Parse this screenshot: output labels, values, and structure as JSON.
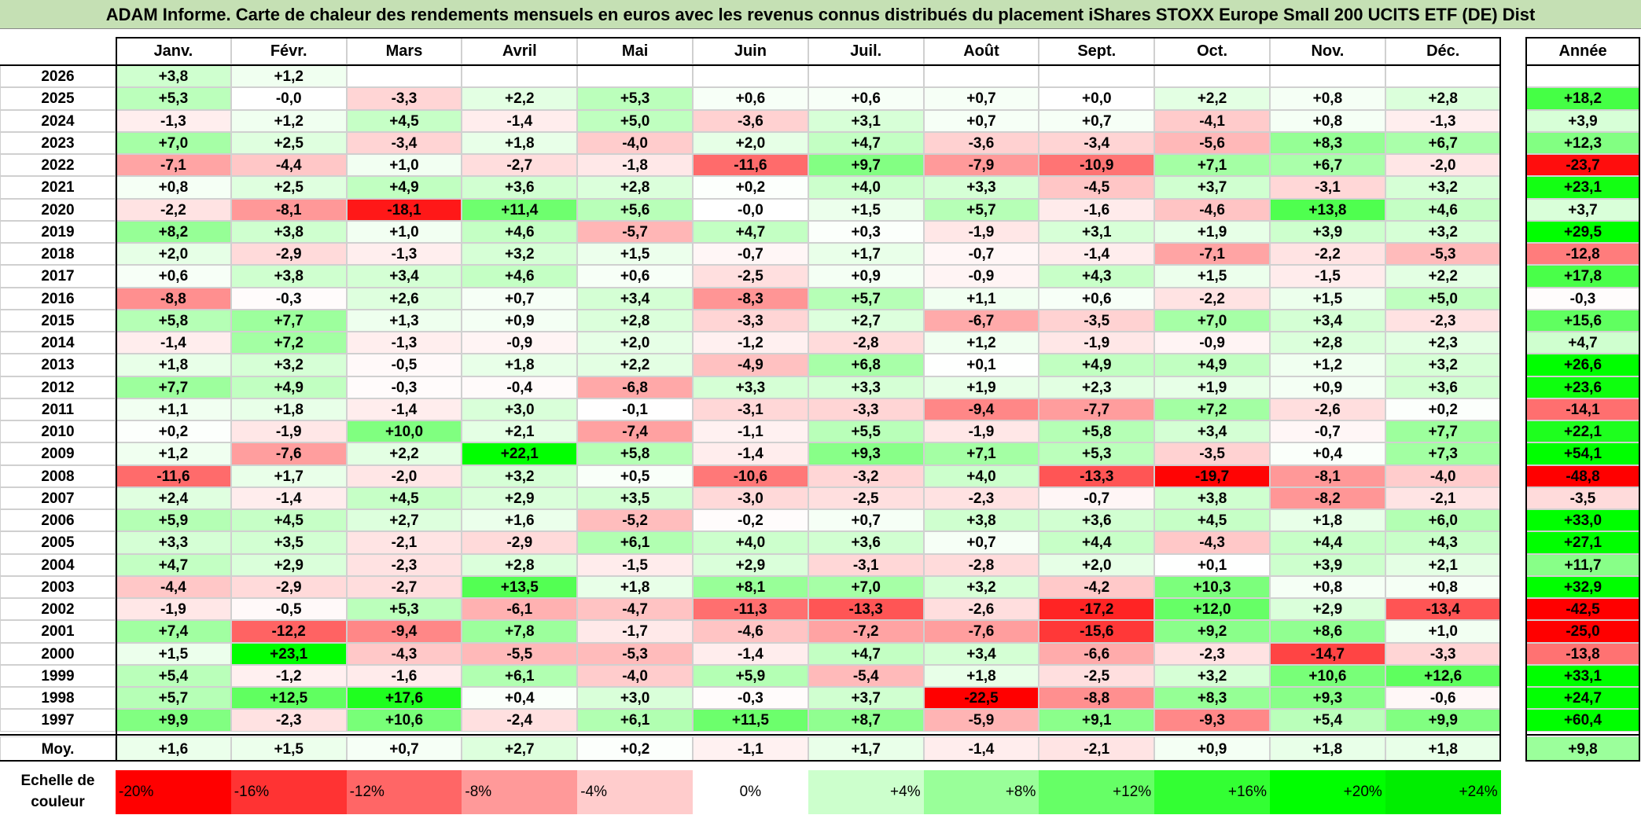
{
  "title": "ADAM Informe. Carte de chaleur des rendements mensuels en euros avec les revenus connus distribués du placement iShares STOXX Europe Small 200 UCITS ETF (DE) Dist",
  "chart_data": {
    "type": "heatmap",
    "title": "ADAM Informe. Carte de chaleur des rendements mensuels en euros avec les revenus connus distribués du placement iShares STOXX Europe Small 200 UCITS ETF (DE) Dist",
    "months": [
      "Janv.",
      "Févr.",
      "Mars",
      "Avril",
      "Mai",
      "Juin",
      "Juil.",
      "Août",
      "Sept.",
      "Oct.",
      "Nov.",
      "Déc."
    ],
    "year_header": "Année",
    "rows": [
      {
        "year": "2026",
        "months": [
          "+3,8",
          "+1,2",
          "",
          "",
          "",
          "",
          "",
          "",
          "",
          "",
          "",
          ""
        ],
        "annual": ""
      },
      {
        "year": "2025",
        "months": [
          "+5,3",
          "-0,0",
          "-3,3",
          "+2,2",
          "+5,3",
          "+0,6",
          "+0,6",
          "+0,7",
          "+0,0",
          "+2,2",
          "+0,8",
          "+2,8"
        ],
        "annual": "+18,2"
      },
      {
        "year": "2024",
        "months": [
          "-1,3",
          "+1,2",
          "+4,5",
          "-1,4",
          "+5,0",
          "-3,6",
          "+3,1",
          "+0,7",
          "+0,7",
          "-4,1",
          "+0,8",
          "-1,3"
        ],
        "annual": "+3,9"
      },
      {
        "year": "2023",
        "months": [
          "+7,0",
          "+2,5",
          "-3,4",
          "+1,8",
          "-4,0",
          "+2,0",
          "+4,7",
          "-3,6",
          "-3,4",
          "-5,6",
          "+8,3",
          "+6,7"
        ],
        "annual": "+12,3"
      },
      {
        "year": "2022",
        "months": [
          "-7,1",
          "-4,4",
          "+1,0",
          "-2,7",
          "-1,8",
          "-11,6",
          "+9,7",
          "-7,9",
          "-10,9",
          "+7,1",
          "+6,7",
          "-2,0"
        ],
        "annual": "-23,7"
      },
      {
        "year": "2021",
        "months": [
          "+0,8",
          "+2,5",
          "+4,9",
          "+3,6",
          "+2,8",
          "+0,2",
          "+4,0",
          "+3,3",
          "-4,5",
          "+3,7",
          "-3,1",
          "+3,2"
        ],
        "annual": "+23,1"
      },
      {
        "year": "2020",
        "months": [
          "-2,2",
          "-8,1",
          "-18,1",
          "+11,4",
          "+5,6",
          "-0,0",
          "+1,5",
          "+5,7",
          "-1,6",
          "-4,6",
          "+13,8",
          "+4,6"
        ],
        "annual": "+3,7"
      },
      {
        "year": "2019",
        "months": [
          "+8,2",
          "+3,8",
          "+1,0",
          "+4,6",
          "-5,7",
          "+4,7",
          "+0,3",
          "-1,9",
          "+3,1",
          "+1,9",
          "+3,9",
          "+3,2"
        ],
        "annual": "+29,5"
      },
      {
        "year": "2018",
        "months": [
          "+2,0",
          "-2,9",
          "-1,3",
          "+3,2",
          "+1,5",
          "-0,7",
          "+1,7",
          "-0,7",
          "-1,4",
          "-7,1",
          "-2,2",
          "-5,3"
        ],
        "annual": "-12,8"
      },
      {
        "year": "2017",
        "months": [
          "+0,6",
          "+3,8",
          "+3,4",
          "+4,6",
          "+0,6",
          "-2,5",
          "+0,9",
          "-0,9",
          "+4,3",
          "+1,5",
          "-1,5",
          "+2,2"
        ],
        "annual": "+17,8"
      },
      {
        "year": "2016",
        "months": [
          "-8,8",
          "-0,3",
          "+2,6",
          "+0,7",
          "+3,4",
          "-8,3",
          "+5,7",
          "+1,1",
          "+0,6",
          "-2,2",
          "+1,5",
          "+5,0"
        ],
        "annual": "-0,3"
      },
      {
        "year": "2015",
        "months": [
          "+5,8",
          "+7,7",
          "+1,3",
          "+0,9",
          "+2,8",
          "-3,3",
          "+2,7",
          "-6,7",
          "-3,5",
          "+7,0",
          "+3,4",
          "-2,3"
        ],
        "annual": "+15,6"
      },
      {
        "year": "2014",
        "months": [
          "-1,4",
          "+7,2",
          "-1,3",
          "-0,9",
          "+2,0",
          "-1,2",
          "-2,8",
          "+1,2",
          "-1,9",
          "-0,9",
          "+2,8",
          "+2,3"
        ],
        "annual": "+4,7"
      },
      {
        "year": "2013",
        "months": [
          "+1,8",
          "+3,2",
          "-0,5",
          "+1,8",
          "+2,2",
          "-4,9",
          "+6,8",
          "+0,1",
          "+4,9",
          "+4,9",
          "+1,2",
          "+3,2"
        ],
        "annual": "+26,6"
      },
      {
        "year": "2012",
        "months": [
          "+7,7",
          "+4,9",
          "-0,3",
          "-0,4",
          "-6,8",
          "+3,3",
          "+3,3",
          "+1,9",
          "+2,3",
          "+1,9",
          "+0,9",
          "+3,6"
        ],
        "annual": "+23,6"
      },
      {
        "year": "2011",
        "months": [
          "+1,1",
          "+1,8",
          "-1,4",
          "+3,0",
          "-0,1",
          "-3,1",
          "-3,3",
          "-9,4",
          "-7,7",
          "+7,2",
          "-2,6",
          "+0,2"
        ],
        "annual": "-14,1"
      },
      {
        "year": "2010",
        "months": [
          "+0,2",
          "-1,9",
          "+10,0",
          "+2,1",
          "-7,4",
          "-1,1",
          "+5,5",
          "-1,9",
          "+5,8",
          "+3,4",
          "-0,7",
          "+7,7"
        ],
        "annual": "+22,1"
      },
      {
        "year": "2009",
        "months": [
          "+1,2",
          "-7,6",
          "+2,2",
          "+22,1",
          "+5,8",
          "-1,4",
          "+9,3",
          "+7,1",
          "+5,3",
          "-3,5",
          "+0,4",
          "+7,3"
        ],
        "annual": "+54,1"
      },
      {
        "year": "2008",
        "months": [
          "-11,6",
          "+1,7",
          "-2,0",
          "+3,2",
          "+0,5",
          "-10,6",
          "-3,2",
          "+4,0",
          "-13,3",
          "-19,7",
          "-8,1",
          "-4,0"
        ],
        "annual": "-48,8"
      },
      {
        "year": "2007",
        "months": [
          "+2,4",
          "-1,4",
          "+4,5",
          "+2,9",
          "+3,5",
          "-3,0",
          "-2,5",
          "-2,3",
          "-0,7",
          "+3,8",
          "-8,2",
          "-2,1"
        ],
        "annual": "-3,5"
      },
      {
        "year": "2006",
        "months": [
          "+5,9",
          "+4,5",
          "+2,7",
          "+1,6",
          "-5,2",
          "-0,2",
          "+0,7",
          "+3,8",
          "+3,6",
          "+4,5",
          "+1,8",
          "+6,0"
        ],
        "annual": "+33,0"
      },
      {
        "year": "2005",
        "months": [
          "+3,3",
          "+3,5",
          "-2,1",
          "-2,9",
          "+6,1",
          "+4,0",
          "+3,6",
          "+0,7",
          "+4,4",
          "-4,3",
          "+4,4",
          "+4,3"
        ],
        "annual": "+27,1"
      },
      {
        "year": "2004",
        "months": [
          "+4,7",
          "+2,9",
          "-2,3",
          "+2,8",
          "-1,5",
          "+2,9",
          "-3,1",
          "-2,8",
          "+2,0",
          "+0,1",
          "+3,9",
          "+2,1"
        ],
        "annual": "+11,7"
      },
      {
        "year": "2003",
        "months": [
          "-4,4",
          "-2,9",
          "-2,7",
          "+13,5",
          "+1,8",
          "+8,1",
          "+7,0",
          "+3,2",
          "-4,2",
          "+10,3",
          "+0,8",
          "+0,8"
        ],
        "annual": "+32,9"
      },
      {
        "year": "2002",
        "months": [
          "-1,9",
          "-0,5",
          "+5,3",
          "-6,1",
          "-4,7",
          "-11,3",
          "-13,3",
          "-2,6",
          "-17,2",
          "+12,0",
          "+2,9",
          "-13,4"
        ],
        "annual": "-42,5"
      },
      {
        "year": "2001",
        "months": [
          "+7,4",
          "-12,2",
          "-9,4",
          "+7,8",
          "-1,7",
          "-4,6",
          "-7,2",
          "-7,6",
          "-15,6",
          "+9,2",
          "+8,6",
          "+1,0"
        ],
        "annual": "-25,0"
      },
      {
        "year": "2000",
        "months": [
          "+1,5",
          "+23,1",
          "-4,3",
          "-5,5",
          "-5,3",
          "-1,4",
          "+4,7",
          "+3,4",
          "-6,6",
          "-2,3",
          "-14,7",
          "-3,3"
        ],
        "annual": "-13,8"
      },
      {
        "year": "1999",
        "months": [
          "+5,4",
          "-1,2",
          "-1,6",
          "+6,1",
          "-4,0",
          "+5,9",
          "-5,4",
          "+1,8",
          "-2,5",
          "+3,2",
          "+10,6",
          "+12,6"
        ],
        "annual": "+33,1"
      },
      {
        "year": "1998",
        "months": [
          "+5,7",
          "+12,5",
          "+17,6",
          "+0,4",
          "+3,0",
          "-0,3",
          "+3,7",
          "-22,5",
          "-8,8",
          "+8,3",
          "+9,3",
          "-0,6"
        ],
        "annual": "+24,7"
      },
      {
        "year": "1997",
        "months": [
          "+9,9",
          "-2,3",
          "+10,6",
          "-2,4",
          "+6,1",
          "+11,5",
          "+8,7",
          "-5,9",
          "+9,1",
          "-9,3",
          "+5,4",
          "+9,9"
        ],
        "annual": "+60,4"
      }
    ],
    "average": {
      "label": "Moy.",
      "months": [
        "+1,6",
        "+1,5",
        "+0,7",
        "+2,7",
        "+0,2",
        "-1,1",
        "+1,7",
        "-1,4",
        "-2,1",
        "+0,9",
        "+1,8",
        "+1,8"
      ],
      "annual": "+9,8"
    },
    "color_scale": {
      "label_line1": "Echelle de",
      "label_line2": "couleur",
      "stops": [
        {
          "label": "-20%",
          "value": -20,
          "color": "#ff0000"
        },
        {
          "label": "-16%",
          "value": -16,
          "color": "#ff3333"
        },
        {
          "label": "-12%",
          "value": -12,
          "color": "#ff6666"
        },
        {
          "label": "-8%",
          "value": -8,
          "color": "#ff9999"
        },
        {
          "label": "-4%",
          "value": -4,
          "color": "#ffcccc"
        },
        {
          "label": "0%",
          "value": 0,
          "color": "#ffffff"
        },
        {
          "label": "+4%",
          "value": 4,
          "color": "#ccffcc"
        },
        {
          "label": "+8%",
          "value": 8,
          "color": "#99ff99"
        },
        {
          "label": "+12%",
          "value": 12,
          "color": "#66ff66"
        },
        {
          "label": "+16%",
          "value": 16,
          "color": "#33ff33"
        },
        {
          "label": "+20%",
          "value": 20,
          "color": "#00ff00"
        },
        {
          "label": "+24%",
          "value": 24,
          "color": "#00ee00"
        }
      ]
    }
  }
}
